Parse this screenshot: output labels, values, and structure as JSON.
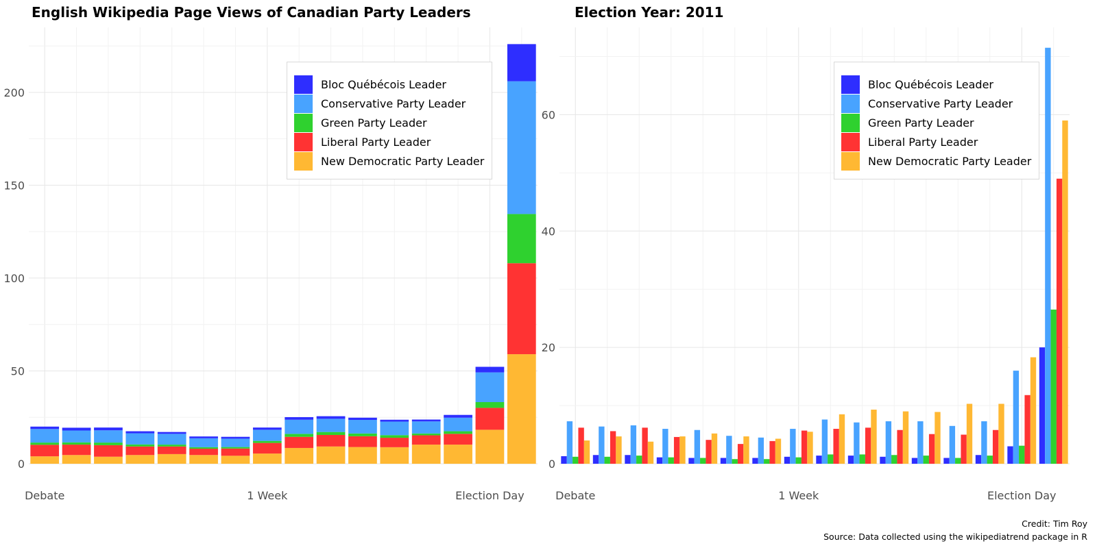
{
  "colors": {
    "bloc": "#2e2eff",
    "conservative": "#48a3ff",
    "green": "#2fd12f",
    "liberal": "#ff3333",
    "ndp": "#ffb833"
  },
  "chart_data": [
    {
      "type": "bar",
      "stacked": true,
      "title": "English Wikipedia Page Views of Canadian Party Leaders",
      "xlabel": "",
      "ylabel": "",
      "x_tick_labels": [
        "Debate",
        "1 Week",
        "Election Day"
      ],
      "y_ticks": [
        0,
        50,
        100,
        150,
        200
      ],
      "ylim": [
        0,
        235
      ],
      "grid": true,
      "legend_position": "top-right",
      "series": [
        {
          "name": "Bloc Québécois Leader",
          "color_key": "bloc",
          "values": [
            1.3,
            1.5,
            1.5,
            1.1,
            1.0,
            1.0,
            1.0,
            1.2,
            1.4,
            1.4,
            1.2,
            1.0,
            1.0,
            1.5,
            3.0,
            20.0
          ]
        },
        {
          "name": "Conservative Party Leader",
          "color_key": "conservative",
          "values": [
            7.3,
            6.4,
            6.6,
            6.0,
            5.8,
            4.8,
            4.5,
            6.0,
            7.6,
            7.1,
            7.3,
            7.3,
            6.5,
            7.3,
            16.0,
            71.5
          ]
        },
        {
          "name": "Green Party Leader",
          "color_key": "green",
          "values": [
            1.2,
            1.2,
            1.4,
            1.1,
            1.0,
            0.8,
            0.8,
            1.1,
            1.6,
            1.6,
            1.5,
            1.4,
            1.0,
            1.4,
            3.1,
            26.5
          ]
        },
        {
          "name": "Liberal Party Leader",
          "color_key": "liberal",
          "values": [
            6.2,
            5.6,
            6.2,
            4.6,
            4.1,
            3.4,
            3.9,
            5.7,
            6.0,
            6.2,
            5.8,
            5.1,
            5.0,
            5.8,
            11.8,
            49.0
          ]
        },
        {
          "name": "New Democratic Party Leader",
          "color_key": "ndp",
          "values": [
            4.0,
            4.7,
            3.8,
            4.7,
            5.2,
            4.7,
            4.3,
            5.5,
            8.5,
            9.3,
            9.0,
            8.9,
            10.3,
            10.3,
            18.3,
            59.0
          ]
        }
      ]
    },
    {
      "type": "bar",
      "stacked": false,
      "title": "Election Year: 2011",
      "xlabel": "",
      "ylabel": "",
      "x_tick_labels": [
        "Debate",
        "1 Week",
        "Election Day"
      ],
      "y_ticks": [
        0,
        20,
        40,
        60
      ],
      "ylim": [
        0,
        75
      ],
      "grid": true,
      "legend_position": "top-right",
      "series": [
        {
          "name": "Bloc Québécois Leader",
          "color_key": "bloc",
          "values": [
            1.3,
            1.5,
            1.5,
            1.1,
            1.0,
            1.0,
            1.0,
            1.2,
            1.4,
            1.4,
            1.2,
            1.0,
            1.0,
            1.5,
            3.0,
            20.0
          ]
        },
        {
          "name": "Conservative Party Leader",
          "color_key": "conservative",
          "values": [
            7.3,
            6.4,
            6.6,
            6.0,
            5.8,
            4.8,
            4.5,
            6.0,
            7.6,
            7.1,
            7.3,
            7.3,
            6.5,
            7.3,
            16.0,
            71.5
          ]
        },
        {
          "name": "Green Party Leader",
          "color_key": "green",
          "values": [
            1.2,
            1.2,
            1.4,
            1.1,
            1.0,
            0.8,
            0.8,
            1.1,
            1.6,
            1.6,
            1.5,
            1.4,
            1.0,
            1.4,
            3.1,
            26.5
          ]
        },
        {
          "name": "Liberal Party Leader",
          "color_key": "liberal",
          "values": [
            6.2,
            5.6,
            6.2,
            4.6,
            4.1,
            3.4,
            3.9,
            5.7,
            6.0,
            6.2,
            5.8,
            5.1,
            5.0,
            5.8,
            11.8,
            49.0
          ]
        },
        {
          "name": "New Democratic Party Leader",
          "color_key": "ndp",
          "values": [
            4.0,
            4.7,
            3.8,
            4.7,
            5.2,
            4.7,
            4.3,
            5.5,
            8.5,
            9.3,
            9.0,
            8.9,
            10.3,
            10.3,
            18.3,
            59.0
          ]
        }
      ]
    }
  ],
  "legend": {
    "items": [
      {
        "label": "Bloc Québécois Leader",
        "color_key": "bloc"
      },
      {
        "label": "Conservative Party Leader",
        "color_key": "conservative"
      },
      {
        "label": "Green Party Leader",
        "color_key": "green"
      },
      {
        "label": "Liberal Party Leader",
        "color_key": "liberal"
      },
      {
        "label": "New Democratic Party Leader",
        "color_key": "ndp"
      }
    ]
  },
  "footer": {
    "credit": "Credit: Tim Roy",
    "source": "Source: Data collected using the wikipediatrend package in R"
  }
}
